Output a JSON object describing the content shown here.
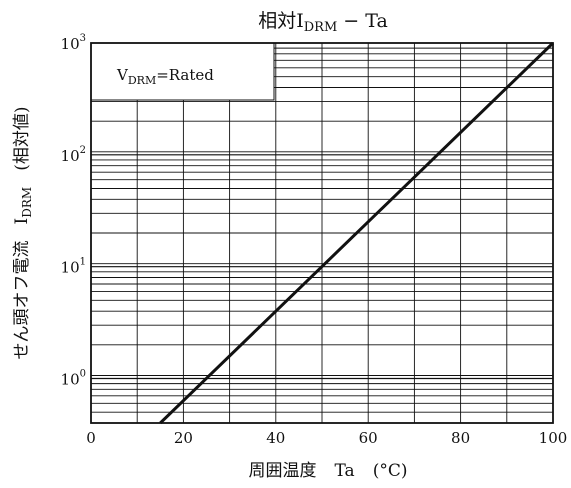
{
  "chart_data": {
    "type": "line",
    "title": {
      "prefix": "相対",
      "symbol": "I",
      "subscript": "DRM",
      "suffix": " − Ta"
    },
    "xlabel": {
      "text": "周囲温度",
      "symbol": "Ta",
      "unit": "(°C)"
    },
    "ylabel": {
      "text": "せん頭オフ電流",
      "symbol": "I",
      "subscript": "DRM",
      "unit": "(相対値)"
    },
    "annotation": {
      "symbol": "V",
      "subscript": "DRM",
      "text": "=Rated"
    },
    "x_ticks": [
      "0",
      "20",
      "40",
      "60",
      "80",
      "100"
    ],
    "y_ticks": [
      {
        "value": 1,
        "base": "10",
        "exp": "0"
      },
      {
        "value": 10,
        "base": "10",
        "exp": "1"
      },
      {
        "value": 100,
        "base": "10",
        "exp": "2"
      },
      {
        "value": 1000,
        "base": "10",
        "exp": "3"
      }
    ],
    "xlim": [
      0,
      100
    ],
    "ylim": [
      0.4,
      1000
    ],
    "y_scale": "log",
    "grid": true,
    "series": [
      {
        "x": [
          15,
          100
        ],
        "y": [
          0.4,
          1000
        ]
      }
    ]
  }
}
